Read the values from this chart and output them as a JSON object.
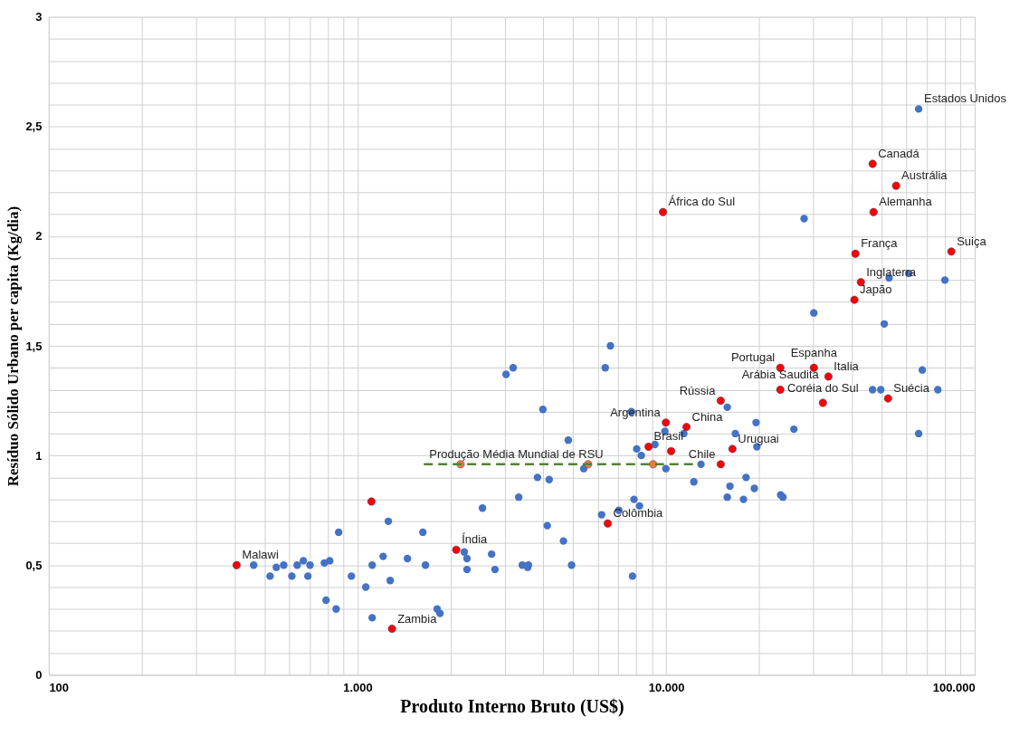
{
  "chart_data": {
    "type": "scatter",
    "xlabel": "Produto Interno Bruto (US$)",
    "ylabel": "Resíduo Sólido Urbano per capita  (Kg/dia)",
    "log": "x",
    "grid": true,
    "legend": false,
    "marker": "circle",
    "xlim": [
      100,
      100000
    ],
    "ylim": [
      0,
      3
    ],
    "xticks": [
      100,
      {
        "value": 200,
        "label": null
      },
      {
        "value": 300,
        "label": null
      },
      {
        "value": 400,
        "label": null
      },
      {
        "value": 500,
        "label": null
      },
      {
        "value": 600,
        "label": null
      },
      {
        "value": 700,
        "label": null
      },
      {
        "value": 800,
        "label": null
      },
      {
        "value": 900,
        "label": null
      },
      {
        "value": 1000,
        "label": "1.000"
      },
      {
        "value": 2000,
        "label": null
      },
      {
        "value": 3000,
        "label": null
      },
      {
        "value": 4000,
        "label": null
      },
      {
        "value": 5000,
        "label": null
      },
      {
        "value": 6000,
        "label": null
      },
      {
        "value": 7000,
        "label": null
      },
      {
        "value": 8000,
        "label": null
      },
      {
        "value": 9000,
        "label": null
      },
      {
        "value": 10000,
        "label": "10.000"
      },
      {
        "value": 20000,
        "label": null
      },
      {
        "value": 30000,
        "label": null
      },
      {
        "value": 40000,
        "label": null
      },
      {
        "value": 50000,
        "label": null
      },
      {
        "value": 60000,
        "label": null
      },
      {
        "value": 70000,
        "label": null
      },
      {
        "value": 80000,
        "label": null
      },
      {
        "value": 90000,
        "label": null
      },
      {
        "value": 100000,
        "label": "100.000"
      }
    ],
    "yticks": [
      0,
      {
        "value": 0.1,
        "label": null
      },
      {
        "value": 0.2,
        "label": null
      },
      {
        "value": 0.3,
        "label": null
      },
      {
        "value": 0.4,
        "label": null
      },
      {
        "value": 0.5,
        "label": "0,5"
      },
      {
        "value": 0.6,
        "label": null
      },
      {
        "value": 0.7,
        "label": null
      },
      {
        "value": 0.8,
        "label": null
      },
      {
        "value": 0.9,
        "label": null
      },
      1,
      {
        "value": 1.1,
        "label": null
      },
      {
        "value": 1.2,
        "label": null
      },
      {
        "value": 1.3,
        "label": null
      },
      {
        "value": 1.4,
        "label": null
      },
      {
        "value": 1.5,
        "label": "1,5"
      },
      {
        "value": 1.6,
        "label": null
      },
      {
        "value": 1.7,
        "label": null
      },
      {
        "value": 1.8,
        "label": null
      },
      {
        "value": 1.9,
        "label": null
      },
      2,
      {
        "value": 2.1,
        "label": null
      },
      {
        "value": 2.2,
        "label": null
      },
      {
        "value": 2.3,
        "label": null
      },
      {
        "value": 2.4,
        "label": null
      },
      {
        "value": 2.5,
        "label": "2,5"
      },
      {
        "value": 2.6,
        "label": null
      },
      {
        "value": 2.7,
        "label": null
      },
      {
        "value": 2.8,
        "label": null
      },
      {
        "value": 2.9,
        "label": null
      },
      3
    ],
    "series": [
      {
        "type": "scatter",
        "color": "#4472c4",
        "x": [
          461,
          521,
          546,
          577,
          613,
          638,
          668,
          691,
          702,
          781,
          813,
          791,
          853,
          869,
          956,
          1064,
          1116,
          1116,
          1211,
          1259,
          1277,
          1452,
          1629,
          1661,
          1812,
          1851,
          2218,
          2264,
          2264,
          2541,
          3030,
          3195,
          3989,
          4820,
          6600,
          6350,
          7720,
          8030,
          8310,
          9200,
          9910,
          9980,
          11410,
          12970,
          12300,
          15780,
          16760,
          19560,
          19680,
          18150,
          16100,
          19310,
          15780,
          17810,
          5410,
          3830,
          4180,
          3330,
          4120,
          4650,
          7870,
          8200,
          7030,
          6180,
          7780,
          2720,
          2790,
          3420,
          3560,
          3580,
          4940,
          27990,
          52750,
          61100,
          80000,
          30100,
          50900,
          67600,
          46650,
          49600,
          75900,
          65770,
          25940,
          23500,
          23900,
          65770
        ],
        "values": [
          0.5,
          0.45,
          0.49,
          0.5,
          0.45,
          0.5,
          0.52,
          0.45,
          0.5,
          0.51,
          0.52,
          0.34,
          0.3,
          0.65,
          0.45,
          0.4,
          0.5,
          0.26,
          0.54,
          0.7,
          0.43,
          0.53,
          0.65,
          0.5,
          0.3,
          0.28,
          0.56,
          0.53,
          0.48,
          0.76,
          1.37,
          1.4,
          1.21,
          1.07,
          1.5,
          1.4,
          1.2,
          1.03,
          1.0,
          1.05,
          1.11,
          0.94,
          1.1,
          0.96,
          0.88,
          1.22,
          1.1,
          1.15,
          1.04,
          0.9,
          0.86,
          0.85,
          0.81,
          0.8,
          0.94,
          0.9,
          0.89,
          0.81,
          0.68,
          0.61,
          0.8,
          0.77,
          0.75,
          0.73,
          0.45,
          0.55,
          0.48,
          0.5,
          0.49,
          0.5,
          0.5,
          2.08,
          1.81,
          1.83,
          1.8,
          1.65,
          1.6,
          1.39,
          1.3,
          1.3,
          1.3,
          1.1,
          1.12,
          0.82,
          0.81,
          2.58
        ]
      },
      {
        "type": "scatter",
        "color": "#ff0000",
        "x": [
          406,
          1294,
          1110,
          2090,
          9770,
          6470,
          9980,
          8770,
          10380,
          11640,
          15030,
          16400,
          15030,
          23440,
          23440,
          30110,
          33560,
          32200,
          52360,
          46660,
          55590,
          46990,
          41040,
          83950,
          42760,
          40740
        ],
        "values": [
          0.5,
          0.21,
          0.79,
          0.57,
          2.11,
          0.69,
          1.15,
          1.04,
          1.02,
          1.13,
          1.25,
          1.03,
          0.96,
          1.4,
          1.3,
          1.4,
          1.36,
          1.24,
          1.26,
          2.33,
          2.23,
          2.11,
          1.92,
          1.93,
          1.79,
          1.71
        ]
      },
      {
        "type": "scatter",
        "color": "#ed7d31",
        "x": [
          2158,
          5590,
          9080
        ],
        "values": [
          0.96,
          0.96,
          0.96
        ]
      },
      {
        "type": "line",
        "color": "#548235",
        "line_style": "dashed",
        "marker": "none",
        "x": [
          1640,
          12800
        ],
        "values": [
          0.96,
          0.96
        ]
      }
    ],
    "annotations": [
      {
        "text": "Malawi",
        "x": 406,
        "y": 0.5
      },
      {
        "text": "Zambia",
        "x": 1294,
        "y": 0.21
      },
      {
        "text": "Índia",
        "x": 2090,
        "y": 0.57
      },
      {
        "text": "África do Sul",
        "x": 9770,
        "y": 2.11
      },
      {
        "text": "Colômbia",
        "x": 6470,
        "y": 0.69
      },
      {
        "text": "Argentina",
        "x": 9980,
        "y": 1.15
      },
      {
        "text": "Brasil",
        "x": 8770,
        "y": 1.04
      },
      {
        "text": "China",
        "x": 11640,
        "y": 1.13
      },
      {
        "text": "Rússia",
        "x": 15030,
        "y": 1.25
      },
      {
        "text": "Uruguai",
        "x": 16400,
        "y": 1.03
      },
      {
        "text": "Chile",
        "x": 15030,
        "y": 0.96
      },
      {
        "text": "Portugal",
        "x": 23440,
        "y": 1.4
      },
      {
        "text": "Arábia Saudita",
        "x": 23440,
        "y": 1.3
      },
      {
        "text": "Espanha",
        "x": 30110,
        "y": 1.4
      },
      {
        "text": "Italia",
        "x": 33560,
        "y": 1.36
      },
      {
        "text": "Coréia do Sul",
        "x": 32200,
        "y": 1.24
      },
      {
        "text": "Suécia",
        "x": 52360,
        "y": 1.26
      },
      {
        "text": "Estados Unidos",
        "x": 65770,
        "y": 2.58
      },
      {
        "text": "Canadá",
        "x": 46660,
        "y": 2.33
      },
      {
        "text": "Austrália",
        "x": 55590,
        "y": 2.23
      },
      {
        "text": "Alemanha",
        "x": 46990,
        "y": 2.11
      },
      {
        "text": "França",
        "x": 41040,
        "y": 1.92
      },
      {
        "text": "Suiça",
        "x": 83950,
        "y": 1.93
      },
      {
        "text": "Inglaterra",
        "x": 42760,
        "y": 1.79
      },
      {
        "text": "Japão",
        "x": 40740,
        "y": 1.71
      },
      {
        "text": "Produção Média Mundial de RSU",
        "x": 1640,
        "y": 0.96
      }
    ]
  }
}
